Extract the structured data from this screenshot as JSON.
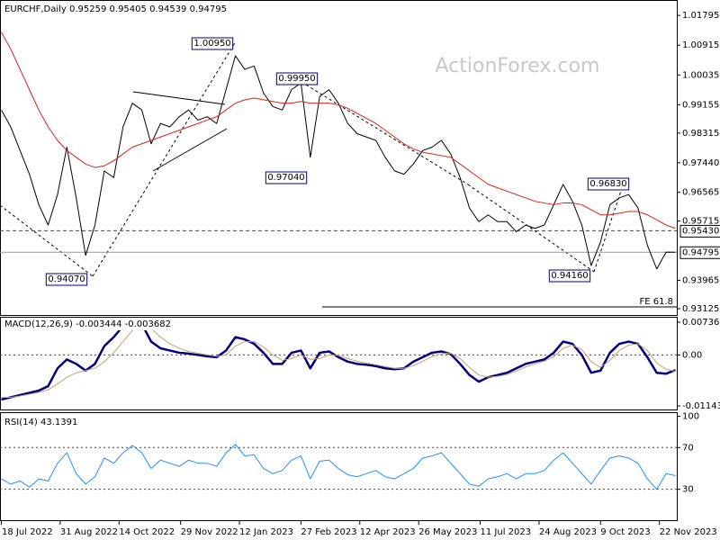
{
  "chart_data": [
    {
      "type": "line",
      "title": "EURCHF,Daily  0.95259 0.95405 0.94539 0.94795",
      "x": [
        "18 Jul 2022",
        "25 Jul 2022",
        "1 Aug 2022",
        "8 Aug 2022",
        "15 Aug 2022",
        "22 Aug 2022",
        "29 Aug 2022",
        "5 Sep 2022",
        "12 Sep 2022",
        "19 Sep 2022",
        "26 Sep 2022",
        "3 Oct 2022",
        "10 Oct 2022",
        "17 Oct 2022",
        "24 Oct 2022",
        "31 Oct 2022",
        "7 Nov 2022",
        "14 Nov 2022",
        "21 Nov 2022",
        "28 Nov 2022",
        "5 Dec 2022",
        "12 Dec 2022",
        "19 Dec 2022",
        "26 Dec 2022",
        "2 Jan 2023",
        "9 Jan 2023",
        "16 Jan 2023",
        "23 Jan 2023",
        "30 Jan 2023",
        "6 Feb 2023",
        "13 Feb 2023",
        "20 Feb 2023",
        "27 Feb 2023",
        "6 Mar 2023",
        "13 Mar 2023",
        "20 Mar 2023",
        "27 Mar 2023",
        "3 Apr 2023",
        "10 Apr 2023",
        "17 Apr 2023",
        "24 Apr 2023",
        "1 May 2023",
        "8 May 2023",
        "15 May 2023",
        "22 May 2023",
        "29 May 2023",
        "5 Jun 2023",
        "12 Jun 2023",
        "19 Jun 2023",
        "26 Jun 2023",
        "3 Jul 2023",
        "10 Jul 2023",
        "17 Jul 2023",
        "24 Jul 2023",
        "31 Jul 2023",
        "7 Aug 2023",
        "14 Aug 2023",
        "21 Aug 2023",
        "28 Aug 2023",
        "4 Sep 2023",
        "11 Sep 2023",
        "18 Sep 2023",
        "25 Sep 2023",
        "2 Oct 2023",
        "9 Oct 2023",
        "16 Oct 2023",
        "23 Oct 2023",
        "30 Oct 2023",
        "6 Nov 2023",
        "13 Nov 2023",
        "20 Nov 2023",
        "27 Nov 2023",
        "4 Dec 2023"
      ],
      "xlim": [
        "17 Jul 2022",
        "5 Dec 2023"
      ],
      "xticks": [
        "18 Jul 2022",
        "31 Aug 2022",
        "14 Oct 2022",
        "29 Nov 2022",
        "12 Jan 2023",
        "27 Feb 2023",
        "12 Apr 2023",
        "26 May 2023",
        "11 Jul 2023",
        "24 Aug 2023",
        "9 Oct 2023",
        "22 Nov 2023"
      ],
      "ylim": [
        0.9294,
        1.0225
      ],
      "yticks": [
        {
          "value": 1.01795,
          "label": "1.01795"
        },
        {
          "value": 1.00915,
          "label": "1.00915"
        },
        {
          "value": 1.00035,
          "label": "1.00035"
        },
        {
          "value": 0.99155,
          "label": "0.99155"
        },
        {
          "value": 0.98315,
          "label": "0.98315"
        },
        {
          "value": 0.9744,
          "label": "0.97440"
        },
        {
          "value": 0.96565,
          "label": "0.96565"
        },
        {
          "value": 0.95715,
          "label": "0.95715"
        },
        {
          "value": 0.93965,
          "label": "0.93965"
        },
        {
          "value": 0.93125,
          "label": "0.93125"
        }
      ],
      "series": [
        {
          "color": "#000000",
          "width": 1,
          "values": [
            0.99,
            0.985,
            0.978,
            0.971,
            0.962,
            0.956,
            0.965,
            0.979,
            0.964,
            0.947,
            0.956,
            0.972,
            0.97,
            0.985,
            0.992,
            0.99,
            0.98,
            0.986,
            0.985,
            0.988,
            0.99,
            0.987,
            0.988,
            0.986,
            0.996,
            1.006,
            1.002,
            1.003,
            0.995,
            0.991,
            0.99,
            0.996,
            0.998,
            0.976,
            0.994,
            0.996,
            0.992,
            0.986,
            0.983,
            0.982,
            0.981,
            0.976,
            0.972,
            0.971,
            0.974,
            0.978,
            0.979,
            0.981,
            0.977,
            0.97,
            0.961,
            0.957,
            0.959,
            0.957,
            0.957,
            0.954,
            0.956,
            0.955,
            0.956,
            0.962,
            0.968,
            0.963,
            0.956,
            0.944,
            0.951,
            0.962,
            0.964,
            0.965,
            0.961,
            0.95,
            0.943,
            0.948,
            0.94795
          ]
        },
        {
          "color": "#e0201a",
          "width": 1,
          "values": [
            1.013,
            1.008,
            1.002,
            0.996,
            0.99,
            0.985,
            0.981,
            0.978,
            0.976,
            0.974,
            0.973,
            0.9735,
            0.975,
            0.977,
            0.979,
            0.98,
            0.981,
            0.982,
            0.983,
            0.984,
            0.985,
            0.986,
            0.987,
            0.988,
            0.99,
            0.992,
            0.993,
            0.9935,
            0.993,
            0.9925,
            0.992,
            0.992,
            0.9925,
            0.992,
            0.992,
            0.992,
            0.9915,
            0.9905,
            0.989,
            0.9875,
            0.986,
            0.984,
            0.982,
            0.98,
            0.9785,
            0.9775,
            0.977,
            0.9765,
            0.976,
            0.974,
            0.972,
            0.97,
            0.968,
            0.967,
            0.966,
            0.965,
            0.964,
            0.963,
            0.9625,
            0.962,
            0.9625,
            0.9625,
            0.962,
            0.9605,
            0.959,
            0.959,
            0.9595,
            0.96,
            0.96,
            0.959,
            0.9575,
            0.956,
            0.955
          ]
        }
      ],
      "levels": [
        {
          "value": 0.9543,
          "label": "0.95430",
          "style": "dashed"
        },
        {
          "value": 0.94795,
          "label": "0.94795",
          "style": "solid"
        }
      ],
      "annotations": [
        "1.00950",
        "0.99950",
        "0.97040",
        "0.94070",
        "0.96830",
        "0.94160"
      ],
      "watermark": "ActionForex.com",
      "fe_label": "FE 61.8"
    },
    {
      "type": "line",
      "title": "MACD(12,26,9) -0.003444 -0.003682",
      "ylim": [
        -0.01224,
        0.00857
      ],
      "yticks": [
        0.007362,
        {
          "value": 0,
          "label": "0.00"
        },
        -0.011431
      ],
      "levels": [
        0
      ],
      "series": [
        {
          "color": "#000080",
          "width": 2.5,
          "values": [
            -0.01,
            -0.0095,
            -0.009,
            -0.0085,
            -0.008,
            -0.007,
            -0.003,
            -0.001,
            -0.002,
            -0.0035,
            -0.002,
            0.002,
            0.004,
            0.0065,
            0.0075,
            0.007,
            0.003,
            0.0015,
            0.001,
            0.0005,
            0.0003,
            0,
            -0.0003,
            -0.0005,
            0.001,
            0.004,
            0.0035,
            0.0025,
            0.0005,
            -0.002,
            -0.002,
            0.0005,
            0.001,
            -0.003,
            0.0005,
            0.0008,
            -0.0005,
            -0.0015,
            -0.002,
            -0.0022,
            -0.0025,
            -0.003,
            -0.0032,
            -0.003,
            -0.0015,
            -0.0005,
            0.0005,
            0.0008,
            0.0002,
            -0.002,
            -0.0045,
            -0.006,
            -0.005,
            -0.0045,
            -0.004,
            -0.003,
            -0.002,
            -0.0015,
            -0.001,
            0.0005,
            0.003,
            0.0025,
            0,
            -0.004,
            -0.0035,
            0.0005,
            0.0025,
            0.003,
            0.0025,
            -0.0005,
            -0.004,
            -0.0042,
            -0.0034
          ]
        },
        {
          "color": "#c8a070",
          "width": 1,
          "values": [
            -0.0095,
            -0.0095,
            -0.0092,
            -0.0088,
            -0.0084,
            -0.0078,
            -0.0065,
            -0.005,
            -0.004,
            -0.0035,
            -0.003,
            -0.0015,
            0.0005,
            0.003,
            0.0055,
            0.0068,
            0.006,
            0.004,
            0.0025,
            0.0015,
            0.0008,
            0.0004,
            0,
            -0.0003,
            0,
            0.002,
            0.003,
            0.003,
            0.0018,
            0,
            -0.0012,
            -0.0008,
            0,
            -0.001,
            -0.0008,
            0,
            -0.0001,
            -0.0008,
            -0.0014,
            -0.0018,
            -0.0022,
            -0.0026,
            -0.003,
            -0.003,
            -0.0024,
            -0.0014,
            -0.0004,
            0.0003,
            0.0004,
            -0.0008,
            -0.0028,
            -0.0045,
            -0.005,
            -0.0048,
            -0.0044,
            -0.0036,
            -0.0027,
            -0.002,
            -0.0014,
            -0.0004,
            0.0015,
            0.0022,
            0.0012,
            -0.0015,
            -0.0028,
            -0.0012,
            0.001,
            0.0022,
            0.0025,
            0.001,
            -0.0018,
            -0.0032,
            -0.0037
          ]
        }
      ]
    },
    {
      "type": "line",
      "title": "RSI(14) 43.1391",
      "ylim": [
        0.4,
        103.9
      ],
      "yticks": [
        100,
        70,
        30
      ],
      "levels": [
        70,
        30
      ],
      "series": [
        {
          "color": "#1e90ff",
          "width": 1,
          "values": [
            40,
            35,
            38,
            32,
            40,
            38,
            55,
            65,
            45,
            35,
            42,
            60,
            55,
            65,
            72,
            65,
            50,
            58,
            55,
            52,
            58,
            55,
            55,
            52,
            65,
            73,
            62,
            63,
            50,
            45,
            48,
            58,
            62,
            40,
            57,
            58,
            50,
            44,
            42,
            45,
            48,
            42,
            40,
            45,
            50,
            60,
            62,
            65,
            55,
            45,
            35,
            33,
            40,
            42,
            45,
            40,
            45,
            45,
            48,
            58,
            65,
            55,
            45,
            35,
            48,
            60,
            62,
            60,
            55,
            40,
            30,
            45,
            43.1391
          ]
        }
      ]
    }
  ]
}
